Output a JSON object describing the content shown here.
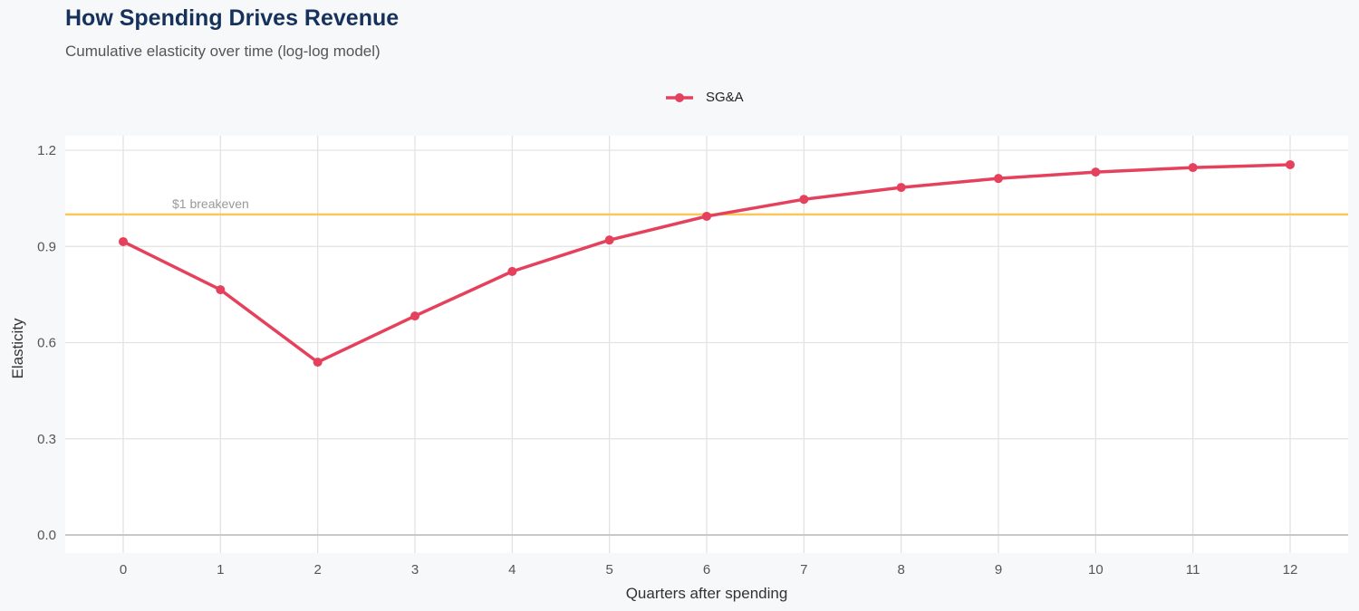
{
  "chart_data": {
    "type": "line",
    "title": "How Spending Drives Revenue",
    "subtitle": "Cumulative elasticity over time (log-log model)",
    "xlabel": "Quarters after spending",
    "ylabel": "Elasticity",
    "x": [
      0,
      1,
      2,
      3,
      4,
      5,
      6,
      7,
      8,
      9,
      10,
      11,
      12
    ],
    "xlim": [
      -0.6,
      12.6
    ],
    "ylim": [
      -0.06,
      1.22
    ],
    "yticks": [
      0.0,
      0.3,
      0.6,
      0.9,
      1.2
    ],
    "ytick_labels": [
      "0.0",
      "0.3",
      "0.6",
      "0.9",
      "1.2"
    ],
    "xtick_labels": [
      "0",
      "1",
      "2",
      "3",
      "4",
      "5",
      "6",
      "7",
      "8",
      "9",
      "10",
      "11",
      "12"
    ],
    "grid": true,
    "legend_position": "top",
    "series": [
      {
        "name": "SG&A",
        "color": "#e5415c",
        "values": [
          0.915,
          0.765,
          0.539,
          0.683,
          0.822,
          0.92,
          0.994,
          1.047,
          1.084,
          1.112,
          1.132,
          1.146,
          1.155
        ]
      }
    ],
    "reference_line": {
      "y": 1.0,
      "label": "$1 breakeven",
      "color": "#f9c85a"
    }
  }
}
